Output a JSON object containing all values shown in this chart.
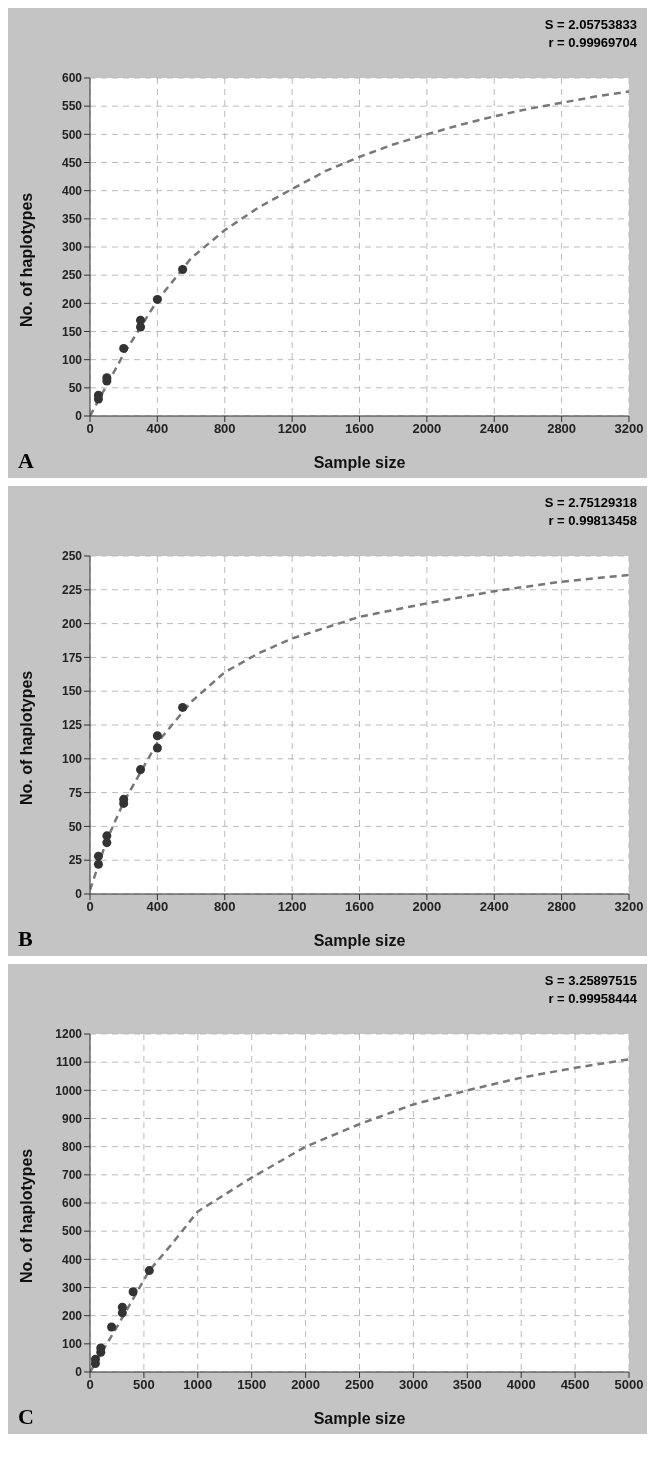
{
  "chart_data": [
    {
      "type": "scatter",
      "xlabel": "Sample size",
      "ylabel": "No. of haplotypes",
      "annotations": [
        "S = 2.05753833",
        "r = 0.99969704",
        "A"
      ],
      "xlim": [
        0,
        3200
      ],
      "xticks": [
        0,
        400,
        800,
        1200,
        1600,
        2000,
        2400,
        2800,
        3200
      ],
      "ylim": [
        0,
        600
      ],
      "yticks": [
        0,
        50,
        100,
        150,
        200,
        250,
        300,
        350,
        400,
        450,
        500,
        550,
        600
      ],
      "grid": true,
      "legend": false,
      "series": [
        {
          "color": "#333333",
          "marker": "circle",
          "x": [
            50,
            50,
            100,
            100,
            200,
            300,
            300,
            400,
            550
          ],
          "values": [
            30,
            37,
            62,
            68,
            120,
            158,
            170,
            207,
            260
          ]
        },
        {
          "type": "line",
          "color": "#777777",
          "line_style": "dashed",
          "marker": "none",
          "x": [
            0,
            200,
            400,
            600,
            800,
            1000,
            1200,
            1400,
            1600,
            1800,
            2000,
            2200,
            2400,
            2600,
            2800,
            3000,
            3200
          ],
          "values": [
            0,
            110,
            205,
            280,
            330,
            370,
            403,
            435,
            460,
            482,
            500,
            517,
            532,
            545,
            556,
            567,
            576
          ]
        }
      ]
    },
    {
      "type": "scatter",
      "xlabel": "Sample size",
      "ylabel": "No. of haplotypes",
      "annotations": [
        "S = 2.75129318",
        "r = 0.99813458",
        "B"
      ],
      "xlim": [
        0,
        3200
      ],
      "xticks": [
        0,
        400,
        800,
        1200,
        1600,
        2000,
        2400,
        2800,
        3200
      ],
      "ylim": [
        0,
        250
      ],
      "yticks": [
        0,
        25,
        50,
        75,
        100,
        125,
        150,
        175,
        200,
        225,
        250
      ],
      "grid": true,
      "legend": false,
      "series": [
        {
          "color": "#333333",
          "marker": "circle",
          "x": [
            50,
            50,
            100,
            100,
            200,
            200,
            300,
            400,
            400,
            550
          ],
          "values": [
            22,
            28,
            38,
            43,
            67,
            70,
            92,
            108,
            117,
            138
          ]
        },
        {
          "type": "line",
          "color": "#777777",
          "line_style": "dashed",
          "marker": "none",
          "x": [
            0,
            100,
            200,
            400,
            600,
            800,
            1000,
            1200,
            1600,
            2000,
            2400,
            2800,
            3200
          ],
          "values": [
            3,
            40,
            68,
            112,
            142,
            164,
            178,
            189,
            205,
            215,
            224,
            231,
            236
          ]
        }
      ]
    },
    {
      "type": "scatter",
      "xlabel": "Sample size",
      "ylabel": "No. of haplotypes",
      "annotations": [
        "S = 3.25897515",
        "r = 0.99958444",
        "C"
      ],
      "xlim": [
        0,
        5000
      ],
      "xticks": [
        0,
        500,
        1000,
        1500,
        2000,
        2500,
        3000,
        3500,
        4000,
        4500,
        5000
      ],
      "ylim": [
        0,
        1200
      ],
      "yticks": [
        0,
        100,
        200,
        300,
        400,
        500,
        600,
        700,
        800,
        900,
        1000,
        1100,
        1200
      ],
      "grid": true,
      "legend": false,
      "series": [
        {
          "color": "#333333",
          "marker": "circle",
          "x": [
            50,
            50,
            100,
            100,
            200,
            300,
            300,
            400,
            550
          ],
          "values": [
            30,
            45,
            70,
            85,
            160,
            210,
            230,
            285,
            360
          ]
        },
        {
          "type": "line",
          "color": "#777777",
          "line_style": "dashed",
          "marker": "none",
          "x": [
            0,
            250,
            550,
            750,
            1000,
            1500,
            2000,
            2500,
            3000,
            3500,
            4000,
            4500,
            5000
          ],
          "values": [
            0,
            160,
            360,
            450,
            570,
            690,
            800,
            880,
            950,
            1000,
            1045,
            1080,
            1110
          ]
        }
      ]
    }
  ]
}
